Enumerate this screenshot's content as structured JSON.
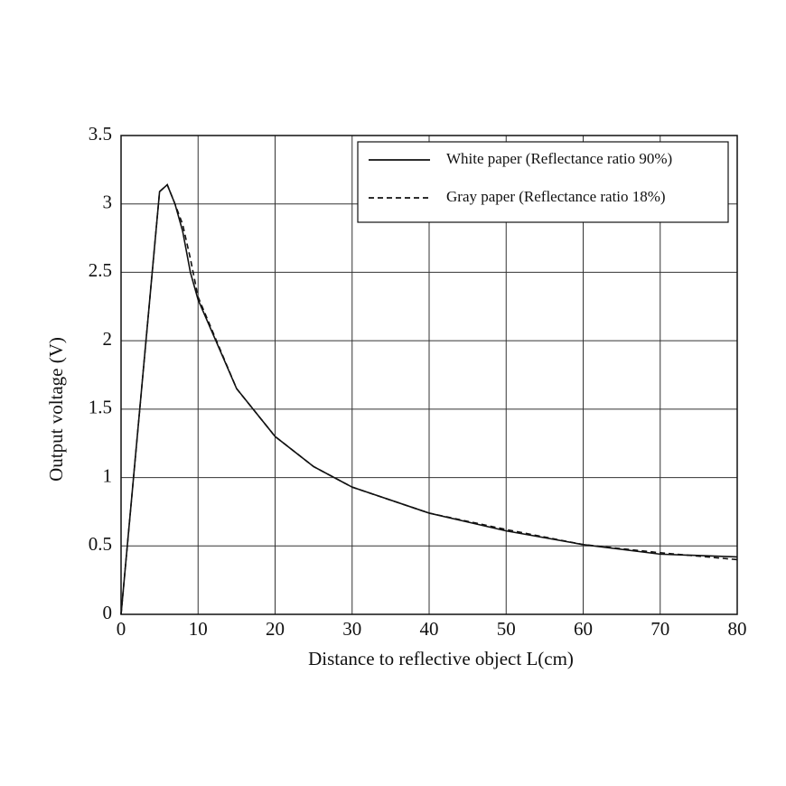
{
  "chart_data": {
    "type": "line",
    "xlabel": "Distance to reflective object L(cm)",
    "ylabel": "Output voltage (V)",
    "x": [
      0,
      5,
      6,
      7,
      8,
      9,
      10,
      15,
      20,
      25,
      30,
      40,
      50,
      60,
      70,
      80
    ],
    "series": [
      {
        "name": "White paper (Reflectance ratio 90%)",
        "color": "#111111",
        "style": "solid",
        "values": [
          0,
          3.09,
          3.14,
          3.0,
          2.8,
          2.5,
          2.3,
          1.65,
          1.3,
          1.08,
          0.93,
          0.74,
          0.61,
          0.51,
          0.44,
          0.42
        ]
      },
      {
        "name": "Gray paper (Reflectance ratio 18%)",
        "color": "#111111",
        "style": "dashed",
        "values": [
          0,
          3.09,
          3.14,
          3.0,
          2.85,
          2.6,
          2.32,
          1.65,
          1.3,
          1.08,
          0.93,
          0.74,
          0.62,
          0.51,
          0.45,
          0.4
        ]
      }
    ],
    "xlim": [
      0,
      80
    ],
    "xticks": [
      0,
      10,
      20,
      30,
      40,
      50,
      60,
      70,
      80
    ],
    "ylim": [
      0,
      3.5
    ],
    "yticks": [
      0,
      0.5,
      1,
      1.5,
      2,
      2.5,
      3,
      3.5
    ],
    "grid": true,
    "legend": "upper-right"
  }
}
